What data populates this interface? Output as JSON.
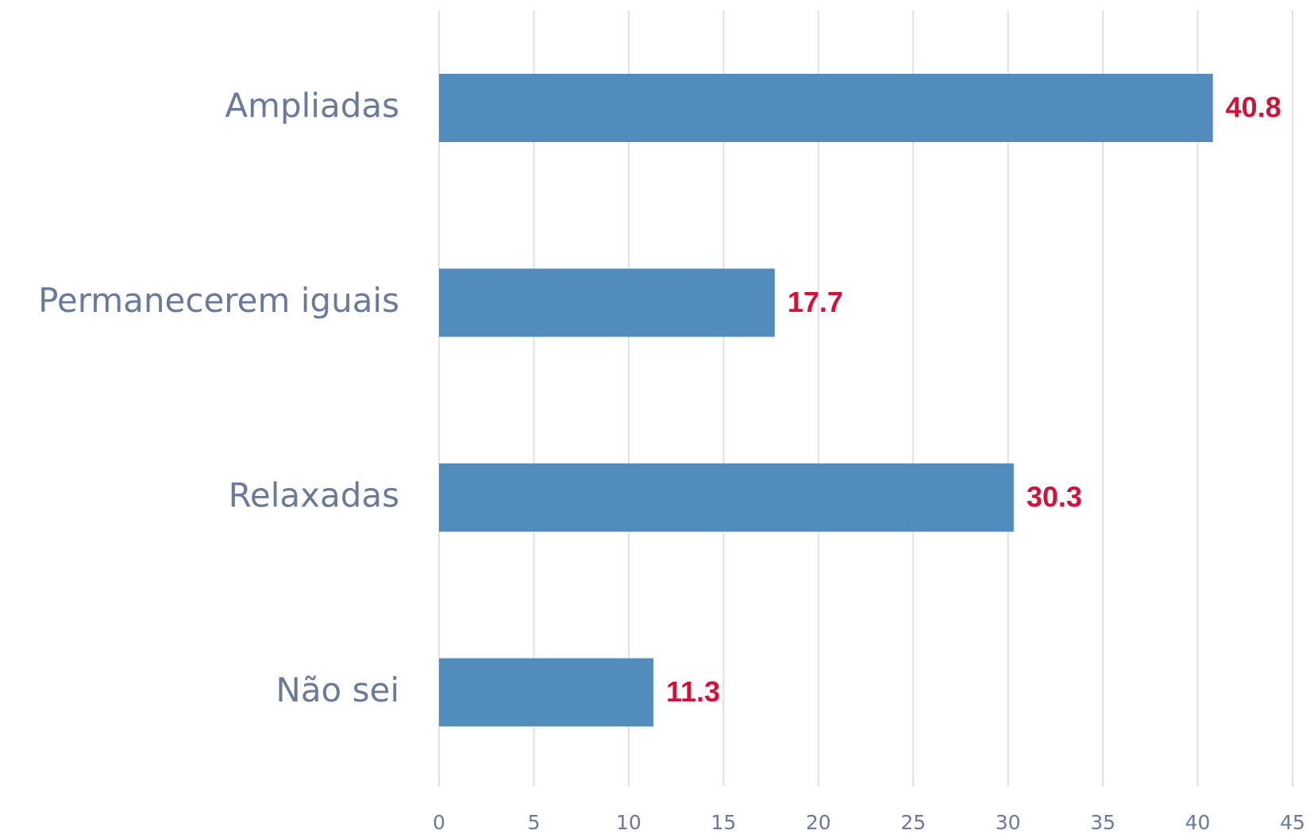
{
  "chart_data": {
    "type": "hbar",
    "categories": [
      "Ampliadas",
      "Permanecerem iguais",
      "Relaxadas",
      "Não sei"
    ],
    "values": [
      40.8,
      17.7,
      30.3,
      11.3
    ],
    "color": "#528cbd",
    "label_color": "#d3123c",
    "xlim": [
      0,
      45
    ],
    "xticks": [
      0,
      5,
      10,
      15,
      20,
      25,
      30,
      35,
      40,
      45
    ],
    "grid": true
  }
}
